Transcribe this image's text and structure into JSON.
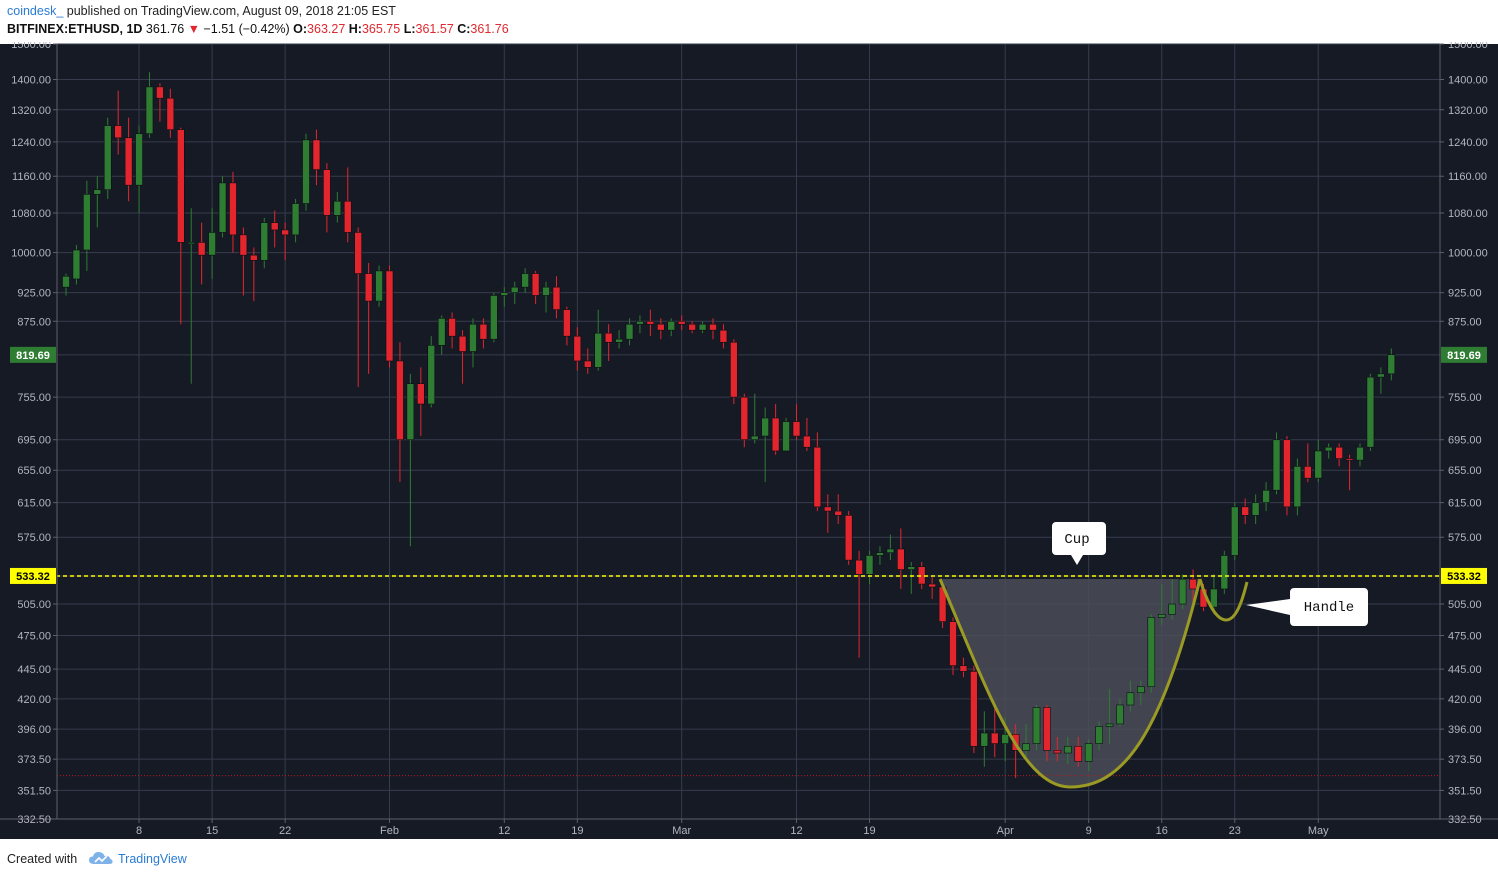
{
  "header": {
    "author": "coindesk_",
    "published": "published on TradingView.com, August 09, 2018 21:05 EST",
    "symbol": "BITFINEX:ETHUSD, 1D",
    "last": "361.76",
    "change_arrow": "▼",
    "change": "−1.51 (−0.42%)",
    "o_label": "O:",
    "o_value": "363.27",
    "h_label": "H:",
    "h_value": "365.75",
    "l_label": "L:",
    "l_value": "361.57",
    "c_label": "C:",
    "c_value": "361.76"
  },
  "footer": {
    "created_with": "Created with",
    "brand": "TradingView",
    "brand_icon": "tradingview-cloud-icon"
  },
  "colors": {
    "background": "#161a25",
    "grid": "#363c4e",
    "up": "#2e7d32",
    "down": "#e3262e",
    "resistance": "#ffff00",
    "cup_curve": "#9a9a25",
    "cup_fill": "#4a4d58",
    "axis_text": "#b2b5be",
    "support": "#b71c1c"
  },
  "chart_data": {
    "type": "candlestick",
    "title": "BITFINEX:ETHUSD, 1D",
    "y_scale": "log",
    "ylim": [
      332.5,
      1500
    ],
    "y_ticks": [
      "1500.00",
      "1400.00",
      "1320.00",
      "1240.00",
      "1160.00",
      "1080.00",
      "1000.00",
      "925.00",
      "875.00",
      "819.69",
      "755.00",
      "695.00",
      "655.00",
      "615.00",
      "575.00",
      "533.32",
      "505.00",
      "475.00",
      "445.00",
      "420.00",
      "396.00",
      "373.50",
      "351.50",
      "332.50"
    ],
    "x_ticks": [
      {
        "label": "8",
        "date": "2018-01-08"
      },
      {
        "label": "15",
        "date": "2018-01-15"
      },
      {
        "label": "22",
        "date": "2018-01-22"
      },
      {
        "label": "Feb",
        "date": "2018-02-01"
      },
      {
        "label": "12",
        "date": "2018-02-12"
      },
      {
        "label": "19",
        "date": "2018-02-19"
      },
      {
        "label": "Mar",
        "date": "2018-03-01"
      },
      {
        "label": "12",
        "date": "2018-03-12"
      },
      {
        "label": "19",
        "date": "2018-03-19"
      },
      {
        "label": "Apr",
        "date": "2018-04-01"
      },
      {
        "label": "9",
        "date": "2018-04-09"
      },
      {
        "label": "16",
        "date": "2018-04-16"
      },
      {
        "label": "23",
        "date": "2018-04-23"
      },
      {
        "label": "May",
        "date": "2018-05-01"
      }
    ],
    "x_range": [
      "2018-01-01",
      "2018-05-05"
    ],
    "candles": [
      {
        "date": "2018-01-01",
        "open": 935,
        "high": 960,
        "close": 955,
        "low": 920
      },
      {
        "date": "2018-01-02",
        "open": 950,
        "high": 1015,
        "close": 1005,
        "low": 940
      },
      {
        "date": "2018-01-03",
        "open": 1005,
        "high": 1150,
        "close": 1120,
        "low": 965
      },
      {
        "date": "2018-01-04",
        "open": 1120,
        "high": 1160,
        "close": 1130,
        "low": 1050
      },
      {
        "date": "2018-01-05",
        "open": 1130,
        "high": 1300,
        "close": 1280,
        "low": 1110
      },
      {
        "date": "2018-01-06",
        "open": 1280,
        "high": 1370,
        "close": 1250,
        "low": 1210
      },
      {
        "date": "2018-01-07",
        "open": 1250,
        "high": 1300,
        "close": 1140,
        "low": 1105
      },
      {
        "date": "2018-01-08",
        "open": 1140,
        "high": 1280,
        "close": 1260,
        "low": 1080
      },
      {
        "date": "2018-01-09",
        "open": 1260,
        "high": 1420,
        "close": 1380,
        "low": 1250
      },
      {
        "date": "2018-01-10",
        "open": 1380,
        "high": 1390,
        "close": 1350,
        "low": 1290
      },
      {
        "date": "2018-01-11",
        "open": 1350,
        "high": 1375,
        "close": 1270,
        "low": 1250
      },
      {
        "date": "2018-01-12",
        "open": 1270,
        "high": 1275,
        "close": 1020,
        "low": 870
      },
      {
        "date": "2018-01-13",
        "open": 1020,
        "high": 1090,
        "close": 1020,
        "low": 775
      },
      {
        "date": "2018-01-14",
        "open": 1020,
        "high": 1060,
        "close": 995,
        "low": 940
      },
      {
        "date": "2018-01-15",
        "open": 995,
        "high": 1090,
        "close": 1040,
        "low": 950
      },
      {
        "date": "2018-01-16",
        "open": 1040,
        "high": 1160,
        "close": 1145,
        "low": 1030
      },
      {
        "date": "2018-01-17",
        "open": 1145,
        "high": 1170,
        "close": 1035,
        "low": 1000
      },
      {
        "date": "2018-01-18",
        "open": 1035,
        "high": 1050,
        "close": 995,
        "low": 920
      },
      {
        "date": "2018-01-19",
        "open": 995,
        "high": 1010,
        "close": 985,
        "low": 910
      },
      {
        "date": "2018-01-20",
        "open": 985,
        "high": 1070,
        "close": 1060,
        "low": 970
      },
      {
        "date": "2018-01-21",
        "open": 1060,
        "high": 1085,
        "close": 1045,
        "low": 1010
      },
      {
        "date": "2018-01-22",
        "open": 1045,
        "high": 1060,
        "close": 1035,
        "low": 985
      },
      {
        "date": "2018-01-23",
        "open": 1035,
        "high": 1110,
        "close": 1100,
        "low": 1020
      },
      {
        "date": "2018-01-24",
        "open": 1100,
        "high": 1260,
        "close": 1245,
        "low": 1085
      },
      {
        "date": "2018-01-25",
        "open": 1245,
        "high": 1270,
        "close": 1175,
        "low": 1140
      },
      {
        "date": "2018-01-26",
        "open": 1175,
        "high": 1190,
        "close": 1075,
        "low": 1040
      },
      {
        "date": "2018-01-27",
        "open": 1075,
        "high": 1125,
        "close": 1105,
        "low": 1060
      },
      {
        "date": "2018-01-28",
        "open": 1105,
        "high": 1180,
        "close": 1040,
        "low": 1020
      },
      {
        "date": "2018-01-29",
        "open": 1040,
        "high": 1050,
        "close": 960,
        "low": 770
      },
      {
        "date": "2018-01-30",
        "open": 960,
        "high": 980,
        "close": 910,
        "low": 790
      },
      {
        "date": "2018-01-31",
        "open": 910,
        "high": 975,
        "close": 965,
        "low": 900
      },
      {
        "date": "2018-02-01",
        "open": 965,
        "high": 975,
        "close": 810,
        "low": 800
      },
      {
        "date": "2018-02-02",
        "open": 810,
        "high": 840,
        "close": 695,
        "low": 640
      },
      {
        "date": "2018-02-03",
        "open": 695,
        "high": 790,
        "close": 775,
        "low": 565
      },
      {
        "date": "2018-02-04",
        "open": 775,
        "high": 800,
        "close": 745,
        "low": 700
      },
      {
        "date": "2018-02-05",
        "open": 745,
        "high": 850,
        "close": 835,
        "low": 740
      },
      {
        "date": "2018-02-06",
        "open": 835,
        "high": 885,
        "close": 880,
        "low": 820
      },
      {
        "date": "2018-02-07",
        "open": 880,
        "high": 890,
        "close": 850,
        "low": 830
      },
      {
        "date": "2018-02-08",
        "open": 850,
        "high": 860,
        "close": 825,
        "low": 775
      },
      {
        "date": "2018-02-09",
        "open": 825,
        "high": 880,
        "close": 870,
        "low": 800
      },
      {
        "date": "2018-02-10",
        "open": 870,
        "high": 880,
        "close": 845,
        "low": 830
      },
      {
        "date": "2018-02-11",
        "open": 845,
        "high": 925,
        "close": 920,
        "low": 840
      },
      {
        "date": "2018-02-12",
        "open": 920,
        "high": 935,
        "close": 925,
        "low": 900
      },
      {
        "date": "2018-02-13",
        "open": 925,
        "high": 945,
        "close": 935,
        "low": 905
      },
      {
        "date": "2018-02-14",
        "open": 935,
        "high": 970,
        "close": 960,
        "low": 925
      },
      {
        "date": "2018-02-15",
        "open": 960,
        "high": 965,
        "close": 920,
        "low": 905
      },
      {
        "date": "2018-02-16",
        "open": 920,
        "high": 945,
        "close": 935,
        "low": 890
      },
      {
        "date": "2018-02-17",
        "open": 935,
        "high": 955,
        "close": 895,
        "low": 880
      },
      {
        "date": "2018-02-18",
        "open": 895,
        "high": 900,
        "close": 850,
        "low": 835
      },
      {
        "date": "2018-02-19",
        "open": 850,
        "high": 865,
        "close": 810,
        "low": 795
      },
      {
        "date": "2018-02-20",
        "open": 810,
        "high": 830,
        "close": 800,
        "low": 790
      },
      {
        "date": "2018-02-21",
        "open": 800,
        "high": 895,
        "close": 855,
        "low": 795
      },
      {
        "date": "2018-02-22",
        "open": 855,
        "high": 870,
        "close": 840,
        "low": 810
      },
      {
        "date": "2018-02-23",
        "open": 840,
        "high": 860,
        "close": 845,
        "low": 830
      },
      {
        "date": "2018-02-24",
        "open": 845,
        "high": 880,
        "close": 870,
        "low": 835
      },
      {
        "date": "2018-02-25",
        "open": 870,
        "high": 885,
        "close": 875,
        "low": 855
      },
      {
        "date": "2018-02-26",
        "open": 875,
        "high": 895,
        "close": 870,
        "low": 850
      },
      {
        "date": "2018-02-27",
        "open": 870,
        "high": 880,
        "close": 860,
        "low": 845
      },
      {
        "date": "2018-02-28",
        "open": 860,
        "high": 880,
        "close": 875,
        "low": 850
      },
      {
        "date": "2018-03-01",
        "open": 875,
        "high": 885,
        "close": 870,
        "low": 860
      },
      {
        "date": "2018-03-02",
        "open": 870,
        "high": 875,
        "close": 860,
        "low": 855
      },
      {
        "date": "2018-03-03",
        "open": 860,
        "high": 875,
        "close": 870,
        "low": 855
      },
      {
        "date": "2018-03-04",
        "open": 870,
        "high": 880,
        "close": 860,
        "low": 845
      },
      {
        "date": "2018-03-05",
        "open": 860,
        "high": 870,
        "close": 840,
        "low": 830
      },
      {
        "date": "2018-03-06",
        "open": 840,
        "high": 845,
        "close": 755,
        "low": 745
      },
      {
        "date": "2018-03-07",
        "open": 755,
        "high": 760,
        "close": 695,
        "low": 685
      },
      {
        "date": "2018-03-08",
        "open": 695,
        "high": 760,
        "close": 700,
        "low": 690
      },
      {
        "date": "2018-03-09",
        "open": 700,
        "high": 740,
        "close": 725,
        "low": 640
      },
      {
        "date": "2018-03-10",
        "open": 725,
        "high": 745,
        "close": 680,
        "low": 675
      },
      {
        "date": "2018-03-11",
        "open": 680,
        "high": 725,
        "close": 720,
        "low": 680
      },
      {
        "date": "2018-03-12",
        "open": 720,
        "high": 745,
        "close": 700,
        "low": 695
      },
      {
        "date": "2018-03-13",
        "open": 700,
        "high": 725,
        "close": 685,
        "low": 680
      },
      {
        "date": "2018-03-14",
        "open": 685,
        "high": 705,
        "close": 610,
        "low": 605
      },
      {
        "date": "2018-03-15",
        "open": 610,
        "high": 625,
        "close": 605,
        "low": 580
      },
      {
        "date": "2018-03-16",
        "open": 605,
        "high": 625,
        "close": 600,
        "low": 590
      },
      {
        "date": "2018-03-17",
        "open": 600,
        "high": 605,
        "close": 550,
        "low": 545
      },
      {
        "date": "2018-03-18",
        "open": 550,
        "high": 560,
        "close": 535,
        "low": 455
      },
      {
        "date": "2018-03-19",
        "open": 535,
        "high": 560,
        "close": 555,
        "low": 525
      },
      {
        "date": "2018-03-20",
        "open": 555,
        "high": 565,
        "close": 558,
        "low": 545
      },
      {
        "date": "2018-03-21",
        "open": 558,
        "high": 578,
        "close": 562,
        "low": 550
      },
      {
        "date": "2018-03-22",
        "open": 562,
        "high": 585,
        "close": 540,
        "low": 520
      },
      {
        "date": "2018-03-23",
        "open": 540,
        "high": 548,
        "close": 543,
        "low": 515
      },
      {
        "date": "2018-03-24",
        "open": 543,
        "high": 548,
        "close": 525,
        "low": 520
      },
      {
        "date": "2018-03-25",
        "open": 525,
        "high": 532,
        "close": 522,
        "low": 510
      },
      {
        "date": "2018-03-26",
        "open": 522,
        "high": 525,
        "close": 488,
        "low": 482
      },
      {
        "date": "2018-03-27",
        "open": 488,
        "high": 492,
        "close": 448,
        "low": 440
      },
      {
        "date": "2018-03-28",
        "open": 448,
        "high": 455,
        "close": 443,
        "low": 438
      },
      {
        "date": "2018-03-29",
        "open": 443,
        "high": 448,
        "close": 383,
        "low": 378
      },
      {
        "date": "2018-03-30",
        "open": 383,
        "high": 410,
        "close": 393,
        "low": 368
      },
      {
        "date": "2018-03-31",
        "open": 393,
        "high": 412,
        "close": 385,
        "low": 375
      },
      {
        "date": "2018-04-01",
        "open": 385,
        "high": 405,
        "close": 392,
        "low": 372
      },
      {
        "date": "2018-04-02",
        "open": 392,
        "high": 400,
        "close": 380,
        "low": 360
      },
      {
        "date": "2018-04-03",
        "open": 380,
        "high": 400,
        "close": 385,
        "low": 375
      },
      {
        "date": "2018-04-04",
        "open": 385,
        "high": 415,
        "close": 413,
        "low": 380
      },
      {
        "date": "2018-04-05",
        "open": 413,
        "high": 415,
        "close": 380,
        "low": 372
      },
      {
        "date": "2018-04-06",
        "open": 380,
        "high": 390,
        "close": 378,
        "low": 372
      },
      {
        "date": "2018-04-07",
        "open": 378,
        "high": 390,
        "close": 383,
        "low": 370
      },
      {
        "date": "2018-04-08",
        "open": 383,
        "high": 390,
        "close": 372,
        "low": 368
      },
      {
        "date": "2018-04-09",
        "open": 372,
        "high": 388,
        "close": 385,
        "low": 365
      },
      {
        "date": "2018-04-10",
        "open": 385,
        "high": 402,
        "close": 398,
        "low": 380
      },
      {
        "date": "2018-04-11",
        "open": 398,
        "high": 428,
        "close": 400,
        "low": 385
      },
      {
        "date": "2018-04-12",
        "open": 400,
        "high": 420,
        "close": 415,
        "low": 398
      },
      {
        "date": "2018-04-13",
        "open": 415,
        "high": 435,
        "close": 425,
        "low": 410
      },
      {
        "date": "2018-04-14",
        "open": 425,
        "high": 435,
        "close": 430,
        "low": 415
      },
      {
        "date": "2018-04-15",
        "open": 430,
        "high": 495,
        "close": 492,
        "low": 425
      },
      {
        "date": "2018-04-16",
        "open": 492,
        "high": 525,
        "close": 495,
        "low": 485
      },
      {
        "date": "2018-04-17",
        "open": 495,
        "high": 530,
        "close": 505,
        "low": 490
      },
      {
        "date": "2018-04-18",
        "open": 505,
        "high": 535,
        "close": 530,
        "low": 500
      },
      {
        "date": "2018-04-19",
        "open": 530,
        "high": 540,
        "close": 520,
        "low": 505
      },
      {
        "date": "2018-04-20",
        "open": 520,
        "high": 525,
        "close": 502,
        "low": 498
      },
      {
        "date": "2018-04-21",
        "open": 502,
        "high": 535,
        "close": 520,
        "low": 495
      },
      {
        "date": "2018-04-22",
        "open": 520,
        "high": 560,
        "close": 555,
        "low": 515
      },
      {
        "date": "2018-04-23",
        "open": 555,
        "high": 615,
        "close": 610,
        "low": 550
      },
      {
        "date": "2018-04-24",
        "open": 610,
        "high": 620,
        "close": 600,
        "low": 590
      },
      {
        "date": "2018-04-25",
        "open": 600,
        "high": 625,
        "close": 615,
        "low": 590
      },
      {
        "date": "2018-04-26",
        "open": 615,
        "high": 640,
        "close": 630,
        "low": 605
      },
      {
        "date": "2018-04-27",
        "open": 630,
        "high": 705,
        "close": 695,
        "low": 625
      },
      {
        "date": "2018-04-28",
        "open": 695,
        "high": 700,
        "close": 610,
        "low": 600
      },
      {
        "date": "2018-04-29",
        "open": 610,
        "high": 670,
        "close": 660,
        "low": 600
      },
      {
        "date": "2018-04-30",
        "open": 660,
        "high": 690,
        "close": 645,
        "low": 640
      },
      {
        "date": "2018-05-01",
        "open": 645,
        "high": 695,
        "close": 680,
        "low": 640
      },
      {
        "date": "2018-05-02",
        "open": 680,
        "high": 690,
        "close": 685,
        "low": 670
      },
      {
        "date": "2018-05-03",
        "open": 685,
        "high": 690,
        "close": 670,
        "low": 660
      },
      {
        "date": "2018-05-04",
        "open": 670,
        "high": 675,
        "close": 668,
        "low": 630
      },
      {
        "date": "2018-05-05",
        "open": 668,
        "high": 690,
        "close": 685,
        "low": 660
      },
      {
        "date": "2018-05-06",
        "open": 685,
        "high": 790,
        "close": 785,
        "low": 680
      },
      {
        "date": "2018-05-07",
        "open": 785,
        "high": 800,
        "close": 790,
        "low": 760
      },
      {
        "date": "2018-05-08",
        "open": 790,
        "high": 830,
        "close": 820,
        "low": 780
      }
    ],
    "price_labels": [
      {
        "value": 819.69,
        "text": "819.69",
        "color": "#2e7d32"
      },
      {
        "value": 533.32,
        "text": "533.32",
        "color": "#ffff00"
      }
    ],
    "resistance_level": 533.32,
    "support_level": 361.76,
    "annotations": [
      {
        "text": "Cup"
      },
      {
        "text": "Handle"
      }
    ]
  }
}
